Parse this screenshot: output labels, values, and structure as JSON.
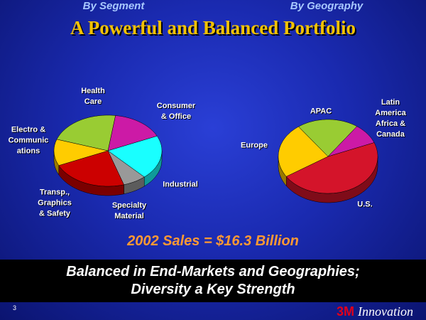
{
  "slide": {
    "title": "A Powerful and Balanced Portfolio",
    "sales": "2002 Sales = $16.3 Billion",
    "banner": "Balanced in End-Markets and Geographies;\nDiversity a Key Strength",
    "page_number": "3",
    "logo_mark": "3M",
    "logo_text": "Innovation"
  },
  "chart_data": [
    {
      "type": "pie",
      "title": "By Segment",
      "categories": [
        "Consumer\n& Office",
        "Industrial",
        "Specialty\nMaterial",
        "Transp.,\nGraphics\n& Safety",
        "Electro &\nCommunic\nations",
        "Health\nCare"
      ],
      "values": [
        16,
        20,
        7,
        23,
        12,
        22
      ],
      "colors": [
        "#cc1aa6",
        "#19ffff",
        "#999999",
        "#cc0000",
        "#ffcc00",
        "#99cc33"
      ]
    },
    {
      "type": "pie",
      "title": "By Geography",
      "categories": [
        "U.S.",
        "Europe",
        "APAC",
        "Latin\nAmerica\nAfrica &\nCanada"
      ],
      "values": [
        47,
        24,
        20,
        9
      ],
      "colors": [
        "#d4142a",
        "#ffcc00",
        "#99cc33",
        "#cc1aa6"
      ]
    }
  ]
}
